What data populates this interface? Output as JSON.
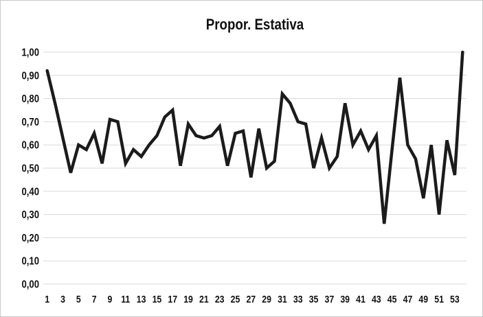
{
  "page": {
    "background": "#ffffff",
    "border_color": "#c9c9c9"
  },
  "chart_data": {
    "type": "line",
    "title": "Propor. Estativa",
    "legend": "none",
    "grid": "horizontal",
    "ylim": [
      0,
      1
    ],
    "ytick_step": 0.1,
    "y_tick_labels": [
      "0,00",
      "0,10",
      "0,20",
      "0,30",
      "0,40",
      "0,50",
      "0,60",
      "0,70",
      "0,80",
      "0,90",
      "1,00"
    ],
    "x_tick_labels": [
      "1",
      "3",
      "5",
      "7",
      "9",
      "11",
      "13",
      "15",
      "17",
      "19",
      "21",
      "23",
      "25",
      "27",
      "29",
      "31",
      "33",
      "35",
      "37",
      "39",
      "41",
      "43",
      "45",
      "47",
      "49",
      "51",
      "53"
    ],
    "series": [
      {
        "name": "Propor. Estativa",
        "values": [
          0.92,
          0.78,
          0.63,
          0.48,
          0.6,
          0.58,
          0.65,
          0.52,
          0.71,
          0.7,
          0.52,
          0.58,
          0.55,
          0.6,
          0.64,
          0.72,
          0.75,
          0.51,
          0.69,
          0.64,
          0.63,
          0.64,
          0.68,
          0.51,
          0.65,
          0.66,
          0.46,
          0.67,
          0.5,
          0.53,
          0.82,
          0.78,
          0.7,
          0.69,
          0.5,
          0.63,
          0.5,
          0.55,
          0.78,
          0.6,
          0.66,
          0.58,
          0.64,
          0.26,
          0.58,
          0.89,
          0.6,
          0.54,
          0.37,
          0.6,
          0.3,
          0.62,
          0.47,
          1.0
        ]
      }
    ],
    "line_color": "#1b1b1b",
    "line_width": 4.5,
    "grid_color": "#d9d9d9",
    "text_color": "#111111"
  }
}
